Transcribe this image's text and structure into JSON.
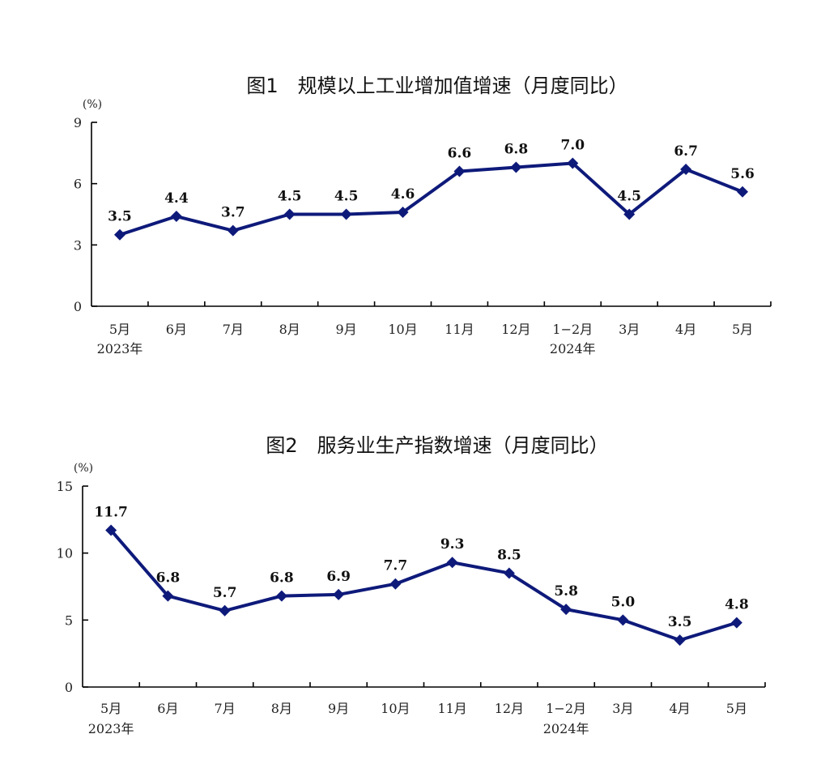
{
  "chart_data": [
    {
      "type": "line",
      "title": "图1　规模以上工业增加值增速（月度同比）",
      "unit": "(%)",
      "categories": [
        "5月",
        "6月",
        "7月",
        "8月",
        "9月",
        "10月",
        "11月",
        "12月",
        "1−2月",
        "3月",
        "4月",
        "5月"
      ],
      "year_labels": [
        {
          "index": 0,
          "text": "2023年"
        },
        {
          "index": 8,
          "text": "2024年"
        }
      ],
      "values": [
        3.5,
        4.4,
        3.7,
        4.5,
        4.5,
        4.6,
        6.6,
        6.8,
        7.0,
        4.5,
        6.7,
        5.6
      ],
      "value_labels": [
        "3.5",
        "4.4",
        "3.7",
        "4.5",
        "4.5",
        "4.6",
        "6.6",
        "6.8",
        "7.0",
        "4.5",
        "6.7",
        "5.6"
      ],
      "yticks": [
        "0",
        "3",
        "6",
        "9"
      ],
      "ylim": [
        0,
        9
      ],
      "color": "#0e1a7a"
    },
    {
      "type": "line",
      "title": "图2　服务业生产指数增速（月度同比）",
      "unit": "(%)",
      "categories": [
        "5月",
        "6月",
        "7月",
        "8月",
        "9月",
        "10月",
        "11月",
        "12月",
        "1−2月",
        "3月",
        "4月",
        "5月"
      ],
      "year_labels": [
        {
          "index": 0,
          "text": "2023年"
        },
        {
          "index": 8,
          "text": "2024年"
        }
      ],
      "values": [
        11.7,
        6.8,
        5.7,
        6.8,
        6.9,
        7.7,
        9.3,
        8.5,
        5.8,
        5.0,
        3.5,
        4.8
      ],
      "value_labels": [
        "11.7",
        "6.8",
        "5.7",
        "6.8",
        "6.9",
        "7.7",
        "9.3",
        "8.5",
        "5.8",
        "5.0",
        "3.5",
        "4.8"
      ],
      "yticks": [
        "0",
        "5",
        "10",
        "15"
      ],
      "ylim": [
        0,
        15
      ],
      "color": "#0e1a7a"
    }
  ]
}
